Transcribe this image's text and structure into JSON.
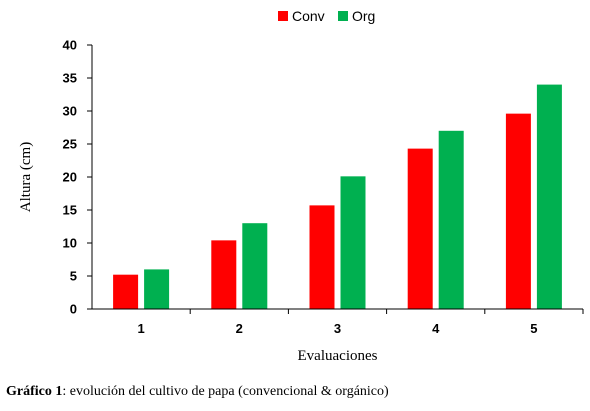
{
  "chart_data": {
    "type": "bar",
    "categories": [
      "1",
      "2",
      "3",
      "4",
      "5"
    ],
    "series": [
      {
        "name": "Conv",
        "values": [
          5.2,
          10.4,
          15.7,
          24.3,
          29.6
        ],
        "color": "#ff0000"
      },
      {
        "name": "Org",
        "values": [
          6.0,
          13.0,
          20.1,
          27.0,
          34.0
        ],
        "color": "#00b050"
      }
    ],
    "xlabel": "Evaluaciones",
    "ylabel": "Altura (cm)",
    "ylim": [
      0,
      40
    ],
    "yticks": [
      "0",
      "5",
      "10",
      "15",
      "20",
      "25",
      "30",
      "35",
      "40"
    ],
    "grid": false,
    "legend_position": "top-center"
  },
  "caption": {
    "label": "Gráfico 1",
    "text": ": evolución del cultivo de papa (convencional & orgánico)"
  }
}
